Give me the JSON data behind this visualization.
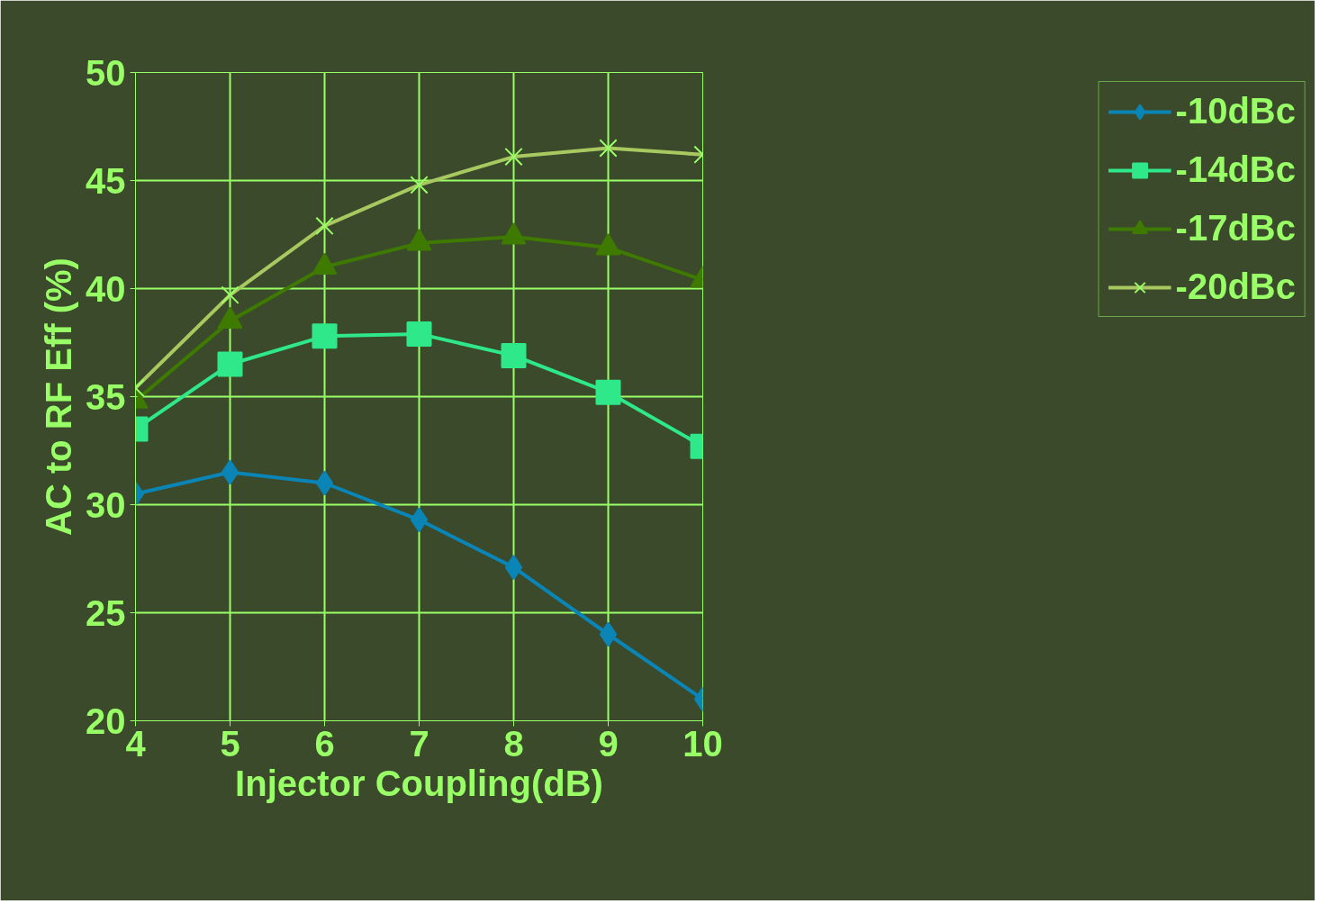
{
  "chart_data": {
    "type": "line",
    "xlabel": "Injector Coupling(dB)",
    "ylabel": "AC to RF Eff (%)",
    "x": [
      4,
      5,
      6,
      7,
      8,
      9,
      10
    ],
    "xlim": [
      4,
      10
    ],
    "xticks": [
      4,
      5,
      6,
      7,
      8,
      9,
      10
    ],
    "ylim": [
      20,
      50
    ],
    "yticks": [
      20,
      25,
      30,
      35,
      40,
      45,
      50
    ],
    "grid": true,
    "legend": "right",
    "series": [
      {
        "name": "-10dBc",
        "color": "#0a85b5",
        "marker": "diamond",
        "values": [
          30.5,
          31.5,
          31.0,
          29.3,
          27.1,
          24.0,
          21.0
        ]
      },
      {
        "name": "-14dBc",
        "color": "#2ee88a",
        "marker": "square",
        "values": [
          33.5,
          36.5,
          37.8,
          37.9,
          36.9,
          35.2,
          32.7
        ]
      },
      {
        "name": "-17dBc",
        "color": "#3f7a00",
        "marker": "triangle",
        "values": [
          34.8,
          38.5,
          41.0,
          42.1,
          42.4,
          41.9,
          40.4
        ]
      },
      {
        "name": "-20dBc",
        "color": "#a8c860",
        "marker": "cross",
        "values": [
          35.4,
          39.7,
          42.9,
          44.8,
          46.1,
          46.5,
          46.2
        ]
      }
    ]
  }
}
